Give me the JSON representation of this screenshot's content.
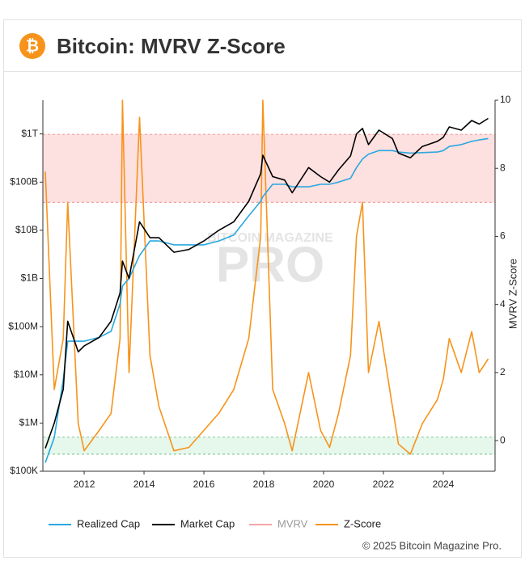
{
  "header": {
    "icon": "₿",
    "title": "Bitcoin: MVRV Z-Score"
  },
  "footer": "© 2025 Bitcoin Magazine Pro.",
  "watermark": [
    "BITCOIN MAGAZINE",
    "PRO"
  ],
  "chart_data": {
    "type": "line",
    "log_scale_y": true,
    "x": [
      2010.7,
      2011.0,
      2011.3,
      2011.45,
      2011.8,
      2012.0,
      2012.5,
      2012.9,
      2013.2,
      2013.28,
      2013.5,
      2013.85,
      2014.2,
      2014.5,
      2015.0,
      2015.5,
      2016.0,
      2016.5,
      2017.0,
      2017.5,
      2017.9,
      2017.97,
      2018.3,
      2018.7,
      2018.95,
      2019.5,
      2019.9,
      2020.2,
      2020.5,
      2020.9,
      2021.1,
      2021.3,
      2021.5,
      2021.85,
      2022.3,
      2022.5,
      2022.9,
      2023.3,
      2023.8,
      2024.0,
      2024.2,
      2024.6,
      2024.95,
      2025.2,
      2025.5
    ],
    "xlim": [
      2010.62,
      2025.73
    ],
    "xticks": [
      2012,
      2014,
      2016,
      2018,
      2020,
      2022,
      2024
    ],
    "ylim": [
      100000,
      5000000000000
    ],
    "yticks": [
      {
        "value": 100000,
        "label": "$100K"
      },
      {
        "value": 1000000,
        "label": "$1M"
      },
      {
        "value": 10000000,
        "label": "$10M"
      },
      {
        "value": 100000000,
        "label": "$100M"
      },
      {
        "value": 1000000000,
        "label": "$1B"
      },
      {
        "value": 10000000000,
        "label": "$10B"
      },
      {
        "value": 100000000000,
        "label": "$100B"
      },
      {
        "value": 1000000000000,
        "label": "$1T"
      }
    ],
    "y2label": "MVRV Z-Score",
    "y2lim": [
      -0.9,
      10
    ],
    "y2ticks": [
      0,
      2,
      4,
      6,
      8,
      10
    ],
    "bands": [
      {
        "range": [
          7,
          9
        ],
        "color": "#fde0e0",
        "edge": "#f08080"
      },
      {
        "range": [
          -0.4,
          0.1
        ],
        "color": "#e6f7ec",
        "edge": "#5cb87a"
      }
    ],
    "series": [
      {
        "name": "Realized Cap",
        "color": "#29a8e0",
        "values": [
          150000,
          500000,
          8000000,
          50000000,
          50000000,
          50000000,
          60000000,
          80000000,
          300000000,
          700000000,
          1000000000,
          3000000000,
          6000000000,
          6000000000,
          5000000000,
          5000000000,
          5000000000,
          6000000000,
          8000000000,
          20000000000,
          40000000000,
          50000000000,
          90000000000,
          90000000000,
          80000000000,
          80000000000,
          90000000000,
          90000000000,
          100000000000,
          120000000000,
          200000000000,
          300000000000,
          380000000000,
          450000000000,
          450000000000,
          420000000000,
          400000000000,
          410000000000,
          420000000000,
          450000000000,
          550000000000,
          600000000000,
          700000000000,
          750000000000,
          800000000000
        ]
      },
      {
        "name": "Market Cap",
        "color": "#000000",
        "values": [
          300000,
          1000000,
          5000000,
          130000000,
          30000000,
          40000000,
          60000000,
          130000000,
          500000000,
          2300000000,
          1000000000,
          15000000000,
          7000000000,
          7000000000,
          3500000000,
          4000000000,
          6000000000,
          10000000000,
          15000000000,
          40000000000,
          150000000000,
          360000000000,
          130000000000,
          110000000000,
          60000000000,
          200000000000,
          130000000000,
          100000000000,
          180000000000,
          350000000000,
          1000000000000,
          1300000000000,
          600000000000,
          1200000000000,
          800000000000,
          400000000000,
          320000000000,
          550000000000,
          700000000000,
          850000000000,
          1400000000000,
          1200000000000,
          1900000000000,
          1600000000000,
          2100000000000
        ]
      },
      {
        "name": "MVRV",
        "color": "#f4a6a6",
        "hidden": true
      },
      {
        "name": "Z-Score",
        "color": "#f7931a",
        "axis": "y2",
        "values": [
          7.9,
          1.5,
          3,
          7,
          0.5,
          -0.3,
          0.3,
          0.8,
          3,
          10,
          2,
          9.5,
          2.5,
          1,
          -0.3,
          -0.2,
          0.3,
          0.8,
          1.5,
          3,
          6,
          10,
          1.5,
          0.5,
          -0.3,
          2,
          0.3,
          -0.2,
          0.8,
          2.5,
          6,
          7,
          2,
          3.5,
          1,
          -0.1,
          -0.4,
          0.5,
          1.2,
          1.8,
          3,
          2,
          3.2,
          2,
          2.4
        ]
      }
    ]
  }
}
